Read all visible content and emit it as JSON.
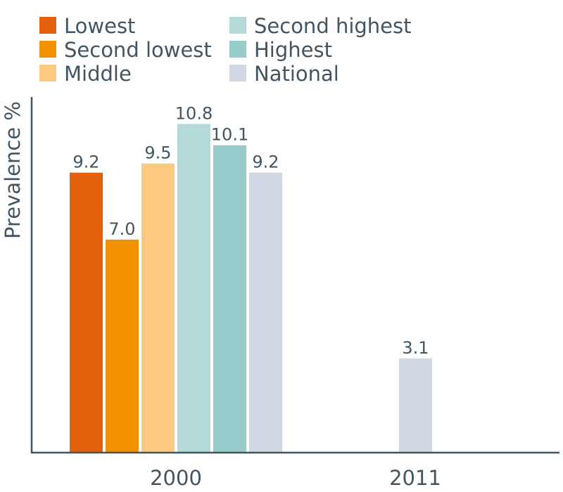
{
  "chart_data": {
    "type": "bar",
    "title": "",
    "xlabel": "",
    "ylabel": "Prevalence %",
    "ylim": [
      0,
      12
    ],
    "grid": false,
    "legend_position": "top-left",
    "categories": [
      "2000",
      "2011"
    ],
    "series": [
      {
        "name": "Lowest",
        "color": "#E0600B",
        "values": [
          9.2,
          null
        ]
      },
      {
        "name": "Second lowest",
        "color": "#F39200",
        "values": [
          7.0,
          null
        ]
      },
      {
        "name": "Middle",
        "color": "#FBC97F",
        "values": [
          9.5,
          null
        ]
      },
      {
        "name": "Second highest",
        "color": "#B4DAD8",
        "values": [
          10.8,
          null
        ]
      },
      {
        "name": "Highest",
        "color": "#96CBC9",
        "values": [
          10.1,
          null
        ]
      },
      {
        "name": "National",
        "color": "#D0D9E3",
        "values": [
          9.2,
          3.1
        ]
      }
    ],
    "data_labels": [
      [
        "9.2",
        null
      ],
      [
        "7.0",
        null
      ],
      [
        "9.5",
        null
      ],
      [
        "10.8",
        null
      ],
      [
        "10.1",
        null
      ],
      [
        "9.2",
        "3.1"
      ]
    ]
  }
}
